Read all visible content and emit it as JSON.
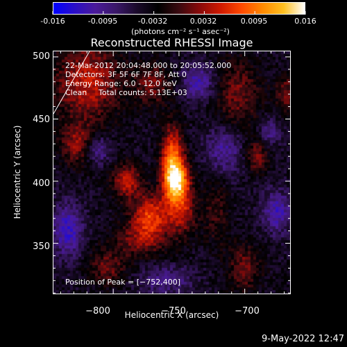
{
  "colorbar": {
    "ticks": [
      "-0.016",
      "-0.0095",
      "-0.0032",
      "0.0032",
      "0.0095",
      "0.016"
    ],
    "unit_label": "(photons cm⁻² s⁻¹ asec⁻²)",
    "colormap": [
      "#0000ff",
      "#2a0ec8",
      "#4a1a9a",
      "#3a1868",
      "#1a0a2a",
      "#000000",
      "#3a0a10",
      "#8a0a0a",
      "#d01a00",
      "#ff4a00",
      "#ff8a00",
      "#ffc020",
      "#ffffff"
    ]
  },
  "chart_data": {
    "type": "heatmap",
    "title": "Reconstructed RHESSI Image",
    "xlabel": "Heliocentric X (arcsec)",
    "ylabel": "Heliocentric Y (arcsec)",
    "x_ticks": [
      "−800",
      "−750",
      "−700"
    ],
    "y_ticks": [
      "500",
      "450",
      "400",
      "350"
    ],
    "x_tick_values": [
      -800,
      -750,
      -700
    ],
    "y_tick_values": [
      500,
      450,
      400,
      350
    ],
    "xlim": [
      -846,
      -665
    ],
    "ylim": [
      309,
      505
    ],
    "value_range": [
      -0.016,
      0.016
    ],
    "peak": [
      -752,
      400
    ],
    "annotations": {
      "time": "22-Mar-2012 20:04:48.000 to 20:05:52.000",
      "detectors": "Detectors: 3F 5F 6F 7F 8F, Att 0",
      "energy": "Energy Range: 6.0 - 12.0 keV",
      "method": "Clean",
      "counts": "Total counts: 5.13E+03",
      "peak_label": "Position of Peak = [−752,400]"
    },
    "blobs": [
      {
        "x": -752,
        "y": 400,
        "sx": 7,
        "sy": 12,
        "a": 0.016
      },
      {
        "x": -755,
        "y": 420,
        "sx": 6,
        "sy": 18,
        "a": 0.012
      },
      {
        "x": -748,
        "y": 375,
        "sx": 8,
        "sy": 14,
        "a": 0.008
      },
      {
        "x": -772,
        "y": 372,
        "sx": 10,
        "sy": 12,
        "a": 0.011
      },
      {
        "x": -790,
        "y": 400,
        "sx": 8,
        "sy": 10,
        "a": 0.009
      },
      {
        "x": -780,
        "y": 352,
        "sx": 14,
        "sy": 10,
        "a": 0.006
      },
      {
        "x": -820,
        "y": 480,
        "sx": 18,
        "sy": 22,
        "a": 0.009
      },
      {
        "x": -828,
        "y": 430,
        "sx": 9,
        "sy": 12,
        "a": 0.007
      },
      {
        "x": -805,
        "y": 330,
        "sx": 10,
        "sy": 10,
        "a": 0.006
      },
      {
        "x": -770,
        "y": 478,
        "sx": 10,
        "sy": 12,
        "a": 0.006
      },
      {
        "x": -705,
        "y": 470,
        "sx": 12,
        "sy": 20,
        "a": 0.006
      },
      {
        "x": -700,
        "y": 330,
        "sx": 9,
        "sy": 14,
        "a": 0.006
      },
      {
        "x": -690,
        "y": 420,
        "sx": 6,
        "sy": 9,
        "a": 0.007
      },
      {
        "x": -668,
        "y": 470,
        "sx": 6,
        "sy": 12,
        "a": 0.006
      },
      {
        "x": -722,
        "y": 375,
        "sx": 7,
        "sy": 20,
        "a": 0.004
      },
      {
        "x": -835,
        "y": 360,
        "sx": 8,
        "sy": 15,
        "a": -0.008
      },
      {
        "x": -735,
        "y": 480,
        "sx": 9,
        "sy": 10,
        "a": -0.007
      },
      {
        "x": -715,
        "y": 425,
        "sx": 10,
        "sy": 14,
        "a": -0.006
      },
      {
        "x": -812,
        "y": 425,
        "sx": 7,
        "sy": 8,
        "a": -0.006
      },
      {
        "x": -675,
        "y": 375,
        "sx": 8,
        "sy": 12,
        "a": -0.007
      },
      {
        "x": -760,
        "y": 320,
        "sx": 14,
        "sy": 8,
        "a": -0.005
      },
      {
        "x": -680,
        "y": 440,
        "sx": 6,
        "sy": 8,
        "a": -0.005
      }
    ]
  },
  "footer": {
    "date": "9-May-2022 12:47"
  }
}
